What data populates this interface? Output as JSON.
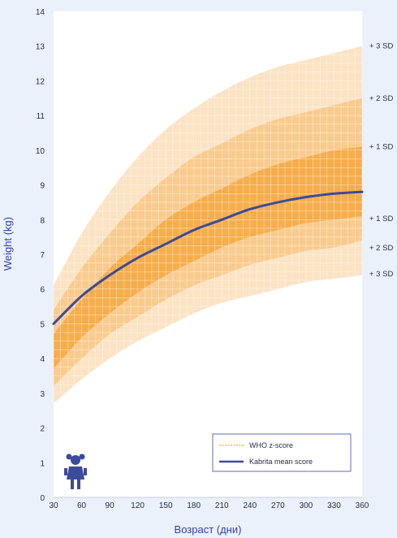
{
  "chart_data": {
    "type": "line",
    "xlabel": "Возраст (дни)",
    "ylabel": "Weight (kg)",
    "xlim": [
      30,
      360
    ],
    "ylim": [
      0,
      14
    ],
    "x_ticks": [
      30,
      60,
      90,
      120,
      150,
      180,
      210,
      240,
      270,
      300,
      330,
      360
    ],
    "y_ticks": [
      0,
      1,
      2,
      3,
      4,
      5,
      6,
      7,
      8,
      9,
      10,
      11,
      12,
      13,
      14
    ],
    "grid": true,
    "legend_position": "bottom-right",
    "legend": [
      "WHO z-score",
      "Kabrita mean score"
    ],
    "x": [
      30,
      60,
      90,
      120,
      150,
      180,
      210,
      240,
      270,
      300,
      330,
      360
    ],
    "bands": [
      {
        "label_upper": "+ 3 SD",
        "label_lower": "+ 3 SD",
        "upper": [
          6.1,
          7.6,
          8.8,
          9.8,
          10.6,
          11.2,
          11.7,
          12.1,
          12.4,
          12.6,
          12.8,
          13.0
        ],
        "lower": [
          2.7,
          3.4,
          4.0,
          4.5,
          4.9,
          5.3,
          5.6,
          5.8,
          6.0,
          6.2,
          6.3,
          6.4
        ]
      },
      {
        "label_upper": "+ 2 SD",
        "label_lower": "+ 2 SD",
        "upper": [
          5.4,
          6.6,
          7.6,
          8.5,
          9.2,
          9.8,
          10.2,
          10.6,
          10.9,
          11.1,
          11.3,
          11.5
        ],
        "lower": [
          3.2,
          4.0,
          4.7,
          5.2,
          5.7,
          6.1,
          6.4,
          6.7,
          6.9,
          7.1,
          7.2,
          7.4
        ]
      },
      {
        "label_upper": "+ 1 SD",
        "label_lower": "+ 1 SD",
        "upper": [
          4.7,
          5.7,
          6.6,
          7.3,
          8.0,
          8.5,
          8.9,
          9.3,
          9.6,
          9.8,
          10.0,
          10.1
        ],
        "lower": [
          3.7,
          4.6,
          5.3,
          5.9,
          6.4,
          6.8,
          7.2,
          7.5,
          7.7,
          7.9,
          8.0,
          8.1
        ]
      }
    ],
    "series": [
      {
        "name": "Kabrita mean score",
        "values": [
          5.0,
          5.8,
          6.4,
          6.9,
          7.3,
          7.7,
          8.0,
          8.3,
          8.5,
          8.65,
          8.75,
          8.8
        ],
        "color": "#3c4a9a"
      }
    ],
    "colors": {
      "band3": "#fbe3c4",
      "band2": "#f9cb8e",
      "band1": "#f6ad4c",
      "line": "#3c4a9a",
      "axis_text": "#3440a8"
    }
  }
}
